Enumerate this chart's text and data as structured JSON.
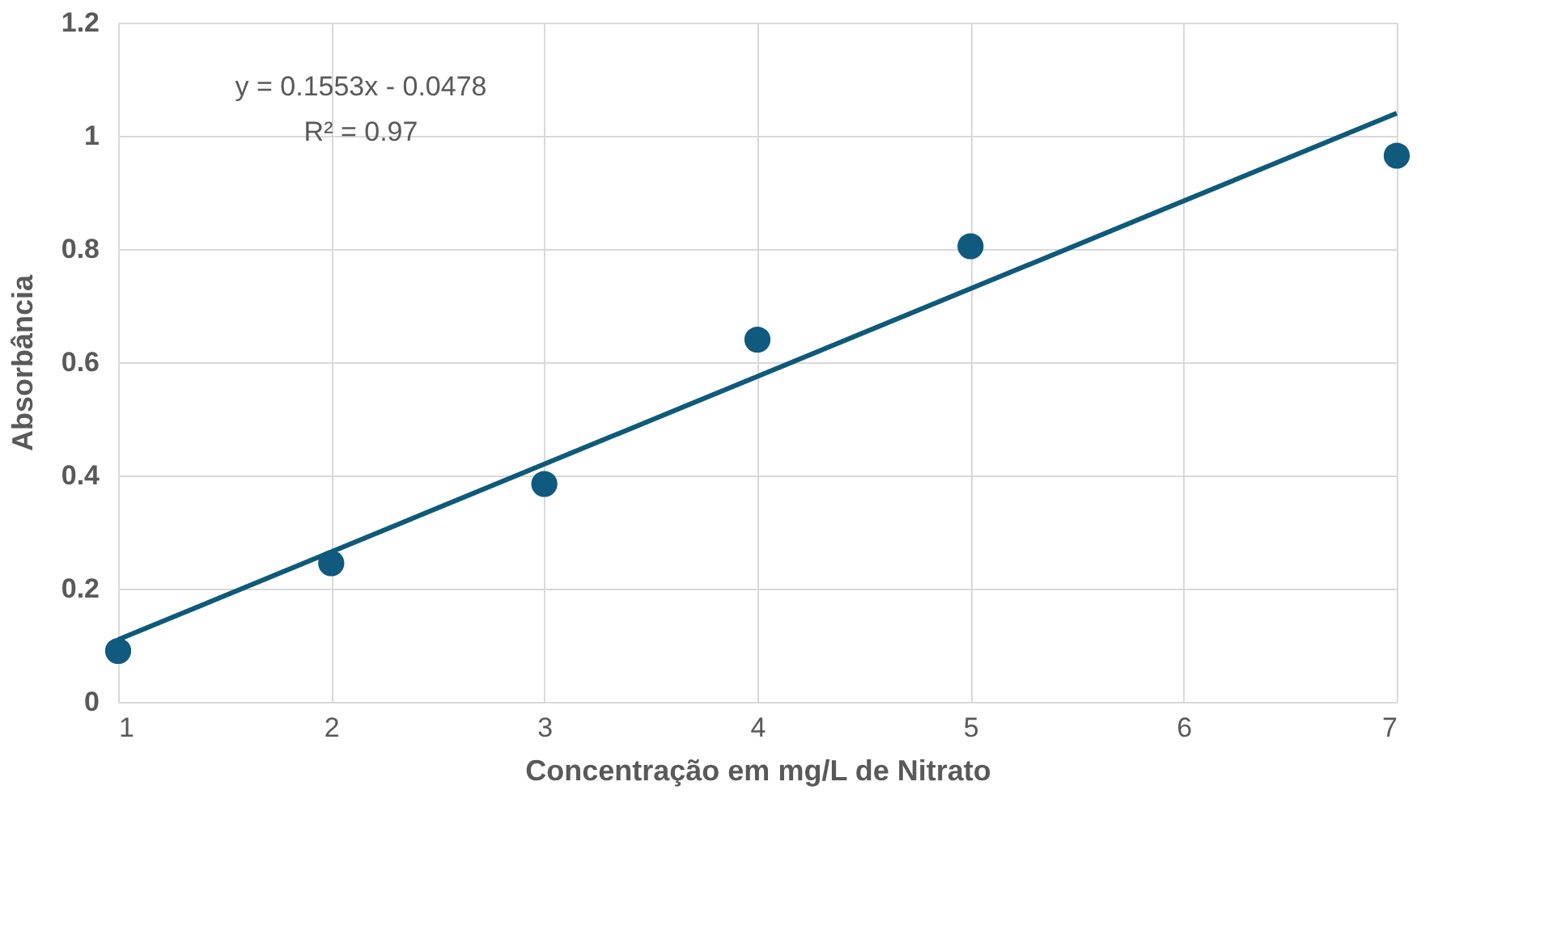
{
  "chart_data": {
    "type": "scatter",
    "xlabel": "Concentração em mg/L de Nitrato",
    "ylabel": "Absorbância",
    "annotations": [
      "y = 0.1553x - 0.0478",
      "R² = 0.97"
    ],
    "series": [
      {
        "color": "#0f5a7e",
        "x": [
          1,
          2,
          3,
          4,
          5,
          7
        ],
        "values": [
          0.09,
          0.245,
          0.385,
          0.64,
          0.805,
          0.965
        ],
        "marker": "circle"
      },
      {
        "type": "line",
        "color": "#0e5a78",
        "x": [
          1,
          7
        ],
        "values": [
          0.11,
          1.04
        ],
        "line_style": "solid"
      }
    ],
    "xlim": [
      1,
      7
    ],
    "xticks": [
      1,
      2,
      3,
      4,
      5,
      6,
      7
    ],
    "ylim": [
      0,
      1.2
    ],
    "yticks": [
      0,
      0.2,
      0.4,
      0.6,
      0.8,
      1,
      1.2
    ],
    "grid": true
  }
}
